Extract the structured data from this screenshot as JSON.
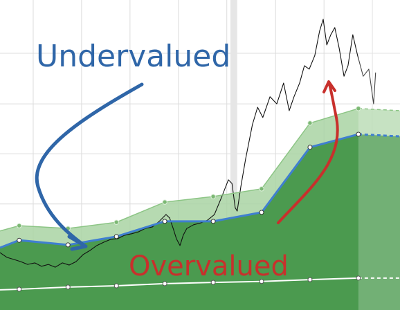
{
  "chart_data": {
    "type": "valuation",
    "xlim": [
      0,
      100
    ],
    "ylim": [
      0,
      100
    ],
    "xticks": [
      8.3,
      20.4,
      32.5,
      44.6,
      56.7,
      68.9,
      81.0,
      93.1
    ],
    "yticks": [
      18.1,
      34.2,
      50.4,
      66.5,
      82.8
    ],
    "grid": true,
    "shaded_ranges": [
      [
        57.6,
        59.3
      ]
    ],
    "forecast_from": 89.6,
    "band_x": [
      0,
      4.8,
      17.0,
      29.1,
      41.2,
      53.3,
      65.4,
      77.5,
      89.6,
      100
    ],
    "upper_band": {
      "color": "#a9d4a3",
      "values": [
        25.5,
        27.2,
        26.3,
        28.3,
        34.8,
        36.6,
        39.1,
        60.3,
        65.0,
        64.3
      ]
    },
    "fair_value": {
      "color": "#3f7fd0",
      "fill": "#4b9a4f",
      "values": [
        20.1,
        22.5,
        21.0,
        23.7,
        28.6,
        28.6,
        31.5,
        52.5,
        56.7,
        56.0
      ]
    },
    "floor": {
      "color": "#ffffff",
      "values": [
        6.5,
        6.7,
        7.4,
        7.8,
        8.5,
        8.9,
        9.2,
        9.8,
        10.3,
        10.3
      ]
    },
    "price": {
      "color": "#111111",
      "x": [
        0,
        1.7,
        3.5,
        5.2,
        6.9,
        8.7,
        10.4,
        12.1,
        13.8,
        15.6,
        17.3,
        19.0,
        20.8,
        22.5,
        24.2,
        26.0,
        27.7,
        29.4,
        31.1,
        32.9,
        34.6,
        36.3,
        38.1,
        39.8,
        41.5,
        42.4,
        43.3,
        44.1,
        45.0,
        45.8,
        46.7,
        48.4,
        50.2,
        51.9,
        53.6,
        55.4,
        57.1,
        58.0,
        58.8,
        59.3,
        60.2,
        61.4,
        63.1,
        64.4,
        65.7,
        67.5,
        69.2,
        70.9,
        72.3,
        73.5,
        74.9,
        76.1,
        77.3,
        78.7,
        79.9,
        80.8,
        81.7,
        82.7,
        83.7,
        84.8,
        86.0,
        87.0,
        88.2,
        89.4,
        90.8,
        92.2,
        93.4,
        93.9
      ],
      "values": [
        18.5,
        17.0,
        16.3,
        15.6,
        14.7,
        15.2,
        14.1,
        14.7,
        13.8,
        15.2,
        14.5,
        15.6,
        17.9,
        19.2,
        20.8,
        21.9,
        22.8,
        23.0,
        24.1,
        24.6,
        25.2,
        26.3,
        26.8,
        28.6,
        30.8,
        29.7,
        26.3,
        23.0,
        20.8,
        24.1,
        26.3,
        27.5,
        28.1,
        29.0,
        30.8,
        36.4,
        42.0,
        40.8,
        33.0,
        31.9,
        39.7,
        48.7,
        59.8,
        65.4,
        62.1,
        68.8,
        66.5,
        73.2,
        64.3,
        68.8,
        73.2,
        78.8,
        77.7,
        82.1,
        90.0,
        93.8,
        85.5,
        88.8,
        91.1,
        84.4,
        75.4,
        78.8,
        88.8,
        82.1,
        75.4,
        77.7,
        66.5,
        76.6
      ]
    },
    "annotations": [
      {
        "text": "Undervalued",
        "color": "#2f66a8"
      },
      {
        "text": "Overvalued",
        "color": "#c8302c"
      }
    ]
  }
}
